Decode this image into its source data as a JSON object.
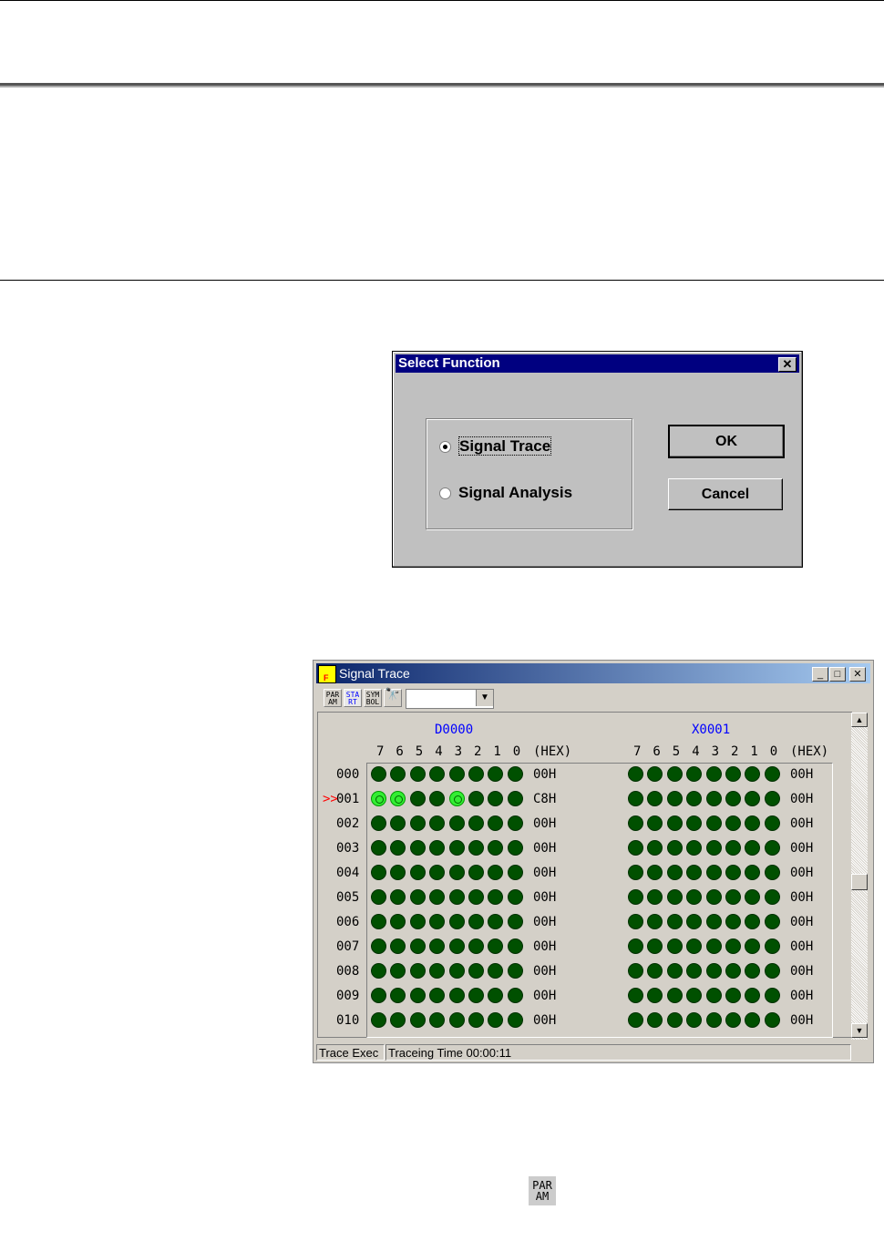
{
  "select_dialog": {
    "title": "Select Function",
    "options": [
      {
        "label": "Signal Trace",
        "selected": true
      },
      {
        "label": "Signal Analysis",
        "selected": false
      }
    ],
    "ok": "OK",
    "cancel": "Cancel"
  },
  "trace_window": {
    "title": "Signal Trace",
    "toolbar": [
      {
        "icon": "param-icon",
        "label": "PAR AM"
      },
      {
        "icon": "start-icon",
        "label": "STA RT"
      },
      {
        "icon": "symbol-icon",
        "label": "SYM BOL"
      },
      {
        "icon": "binoculars-icon"
      }
    ],
    "combo_value": "",
    "devices": [
      {
        "name": "D0000",
        "values": [
          "00H",
          "C8H",
          "00H",
          "00H",
          "00H",
          "00H",
          "00H",
          "00H",
          "00H",
          "00H",
          "00H"
        ]
      },
      {
        "name": "X0001",
        "values": [
          "00H",
          "00H",
          "00H",
          "00H",
          "00H",
          "00H",
          "00H",
          "00H",
          "00H",
          "00H",
          "00H"
        ]
      }
    ],
    "bits": [
      "7",
      "6",
      "5",
      "4",
      "3",
      "2",
      "1",
      "0"
    ],
    "hex_label": "(HEX)",
    "rows": [
      "000",
      "001",
      "002",
      "003",
      "004",
      "005",
      "006",
      "007",
      "008",
      "009",
      "010"
    ],
    "current_row": 1,
    "current_marker": ">>",
    "status": [
      "Trace Exec",
      "Traceing Time 00:00:11"
    ],
    "colors": {
      "led_off": "#005000",
      "led_on": "#33ee33",
      "device_name": "#0000ff",
      "marker": "#ff0000"
    }
  },
  "footer_icon": {
    "icon": "param-icon",
    "label": "PAR AM"
  }
}
